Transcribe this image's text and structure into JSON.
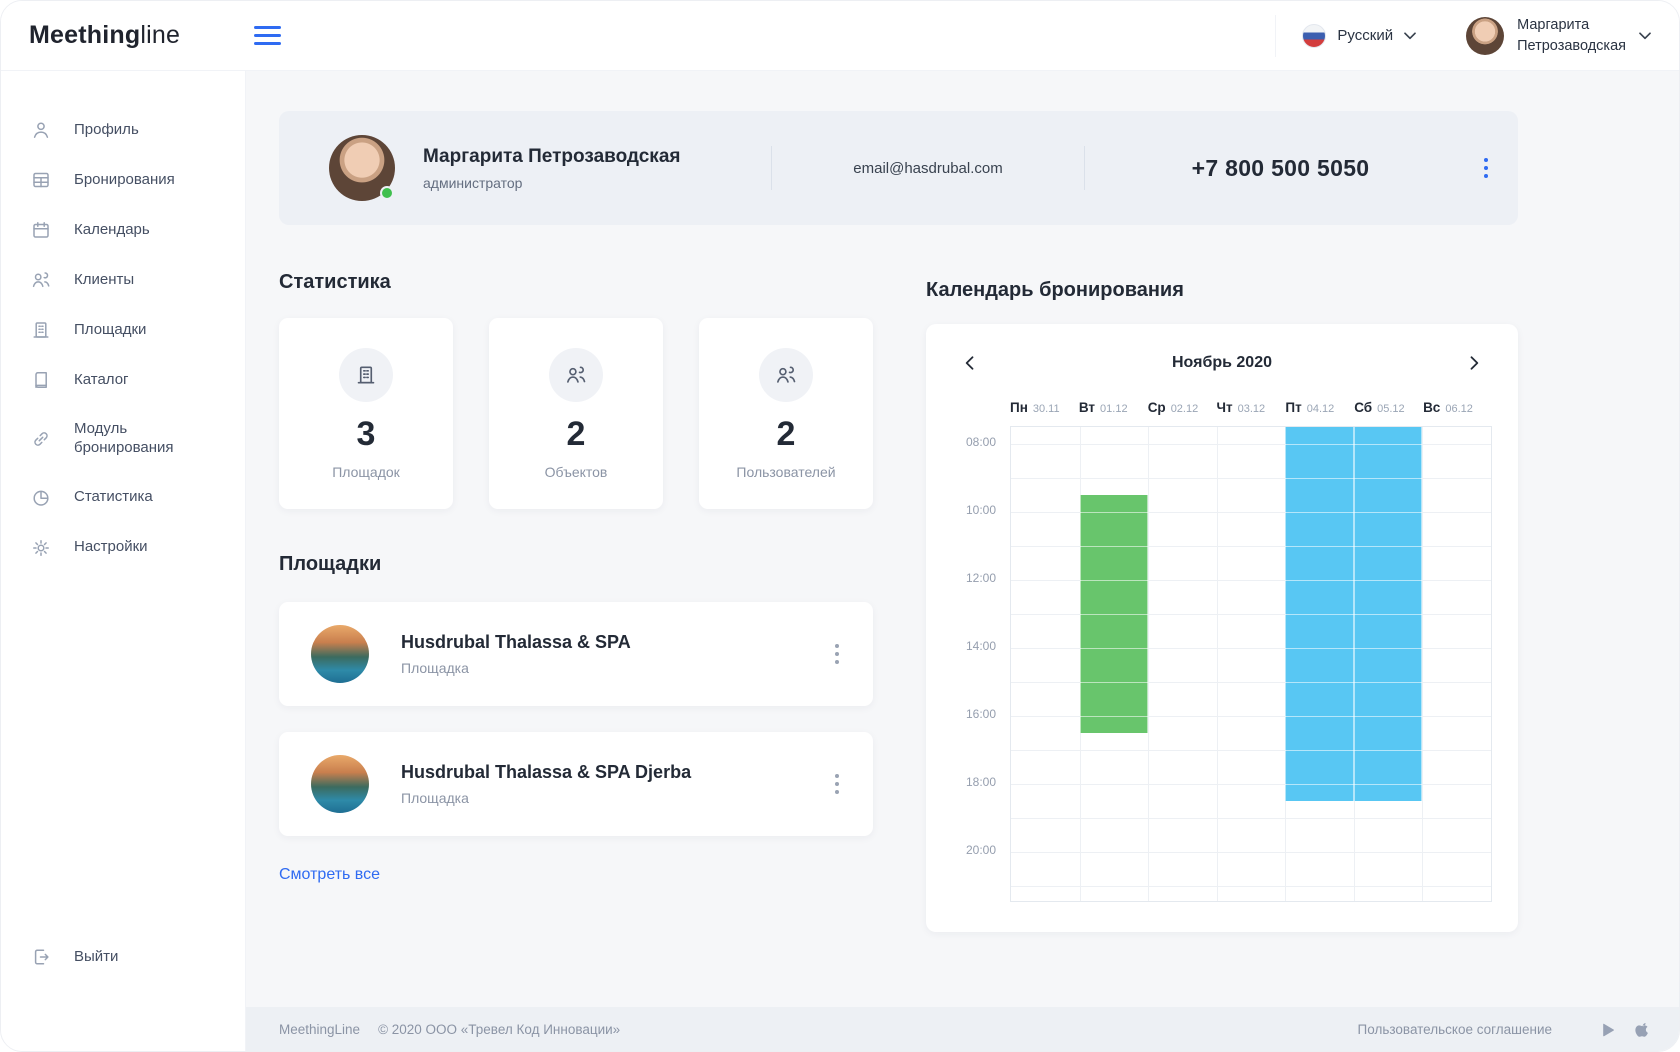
{
  "header": {
    "logo_bold": "Meething",
    "logo_light": "line",
    "language_label": "Русский",
    "user_name_line1": "Маргарита",
    "user_name_line2": "Петрозаводская"
  },
  "sidebar": {
    "items": [
      {
        "label": "Профиль"
      },
      {
        "label": "Бронирования"
      },
      {
        "label": "Календарь"
      },
      {
        "label": "Клиенты"
      },
      {
        "label": "Площадки"
      },
      {
        "label": "Каталог"
      },
      {
        "label": "Модуль бронирования"
      },
      {
        "label": "Статистика"
      },
      {
        "label": "Настройки"
      }
    ],
    "logout_label": "Выйти"
  },
  "profile_card": {
    "name": "Маргарита Петрозаводская",
    "role": "администратор",
    "email": "email@hasdrubal.com",
    "phone": "+7 800 500 5050"
  },
  "stats": {
    "title": "Статистика",
    "cards": [
      {
        "value": "3",
        "label": "Площадок"
      },
      {
        "value": "2",
        "label": "Объектов"
      },
      {
        "value": "2",
        "label": "Пользователей"
      }
    ]
  },
  "venues": {
    "title": "Площадки",
    "items": [
      {
        "name": "Husdrubal Thalassa & SPA",
        "type": "Площадка"
      },
      {
        "name": "Husdrubal Thalassa & SPA Djerba",
        "type": "Площадка"
      }
    ],
    "see_all_label": "Смотреть все"
  },
  "calendar": {
    "title": "Календарь бронирования",
    "month_label": "Ноябрь 2020",
    "days": [
      {
        "name": "Пн",
        "date": "30.11"
      },
      {
        "name": "Вт",
        "date": "01.12"
      },
      {
        "name": "Ср",
        "date": "02.12"
      },
      {
        "name": "Чт",
        "date": "03.12"
      },
      {
        "name": "Пт",
        "date": "04.12"
      },
      {
        "name": "Сб",
        "date": "05.12"
      },
      {
        "name": "Вс",
        "date": "06.12"
      }
    ],
    "time_labels": [
      "08:00",
      "10:00",
      "12:00",
      "14:00",
      "16:00",
      "18:00",
      "20:00"
    ],
    "grid_start_hour": 7.5,
    "grid_end_hour": 21.5,
    "events": [
      {
        "day_index": 1,
        "start_hour": 9.5,
        "end_hour": 16.5,
        "color": "#68c56c"
      },
      {
        "day_index": 4,
        "start_hour": 7.5,
        "end_hour": 18.5,
        "color": "#58c7f3"
      },
      {
        "day_index": 5,
        "start_hour": 7.5,
        "end_hour": 18.5,
        "color": "#58c7f3"
      }
    ]
  },
  "footer": {
    "brand": "MeethingLine",
    "copyright": "© 2020 ООО «Тревел Код Инновации»",
    "agreement_label": "Пользовательское соглашение"
  },
  "colors": {
    "accent": "#2f6bf2",
    "event_green": "#68c56c",
    "event_blue": "#58c7f3",
    "status_online": "#3fbf4e"
  }
}
